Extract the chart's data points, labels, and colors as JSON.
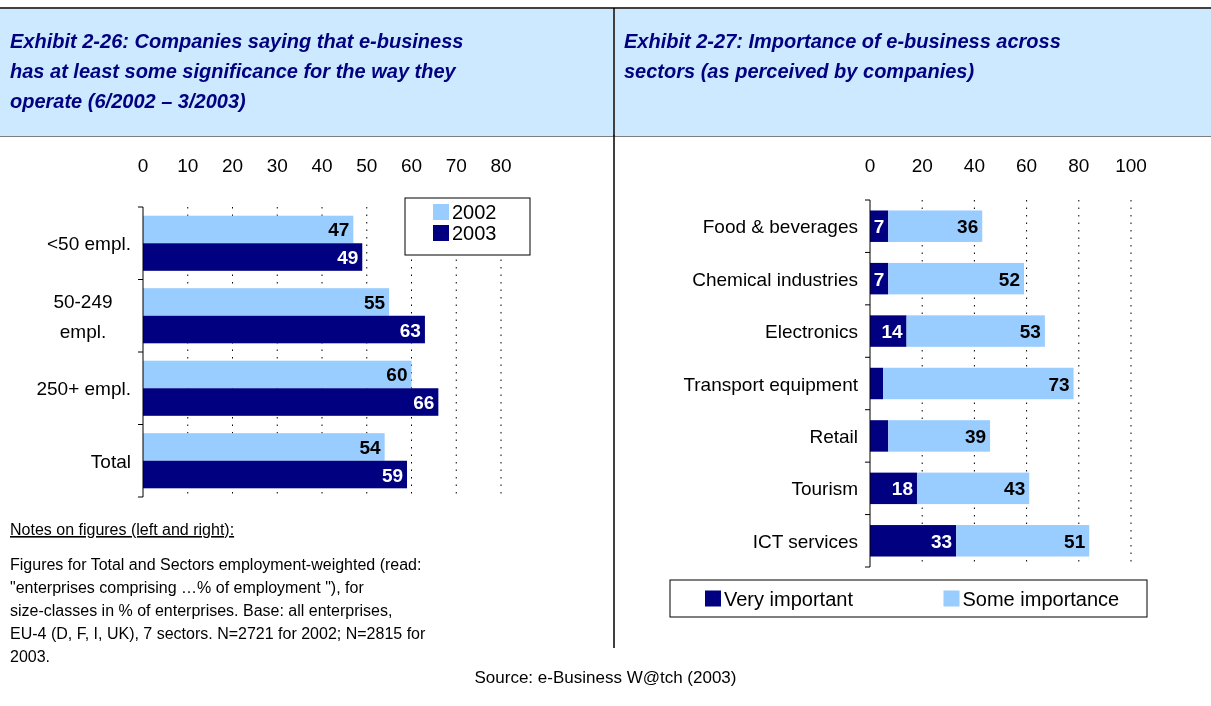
{
  "chart_data": [
    {
      "type": "bar",
      "orientation": "horizontal",
      "title": "Exhibit 2-26: Companies saying that e-business has at least some significance for the way they operate (6/2002 – 3/2003)",
      "categories": [
        "<50 empl.",
        "50-249 empl.",
        "250+ empl.",
        "Total"
      ],
      "series": [
        {
          "name": "2002",
          "color": "#99ccff",
          "values": [
            47,
            55,
            60,
            54
          ]
        },
        {
          "name": "2003",
          "color": "#000080",
          "values": [
            49,
            63,
            66,
            59
          ]
        }
      ],
      "xlim": [
        0,
        80
      ],
      "xticks": [
        0,
        10,
        20,
        30,
        40,
        50,
        60,
        70,
        80
      ],
      "grid": "x",
      "legend": "top right",
      "data_labels": true,
      "annotations": [
        "Notes on figures (left and right):",
        "Figures for Total and Sectors employment-weighted (read: \"enterprises comprising …% of employment \"), for size-classes in % of enterprises. Base: all enterprises, EU-4 (D, F, I, UK), 7 sectors. N=2721 for 2002; N=2815 for 2003.",
        "Source: e-Business W@tch (2003)"
      ]
    },
    {
      "type": "bar",
      "orientation": "horizontal",
      "stacked": true,
      "title": "Exhibit 2-27: Importance of e-business across sectors (as perceived by companies)",
      "categories": [
        "Food & beverages",
        "Chemical industries",
        "Electronics",
        "Transport equipment",
        "Retail",
        "Tourism",
        "ICT services"
      ],
      "series": [
        {
          "name": "Very important",
          "color": "#000080",
          "values": [
            7,
            7,
            14,
            5,
            7,
            18,
            33
          ],
          "value_labels": [
            "7",
            "7",
            "14",
            null,
            null,
            "18",
            "33"
          ]
        },
        {
          "name": "Some importance",
          "color": "#99ccff",
          "values": [
            36,
            52,
            53,
            73,
            39,
            43,
            51
          ],
          "value_labels": [
            "36",
            "52",
            "53",
            "73",
            "39",
            "43",
            "51"
          ]
        }
      ],
      "xlim": [
        0,
        100
      ],
      "xticks": [
        0,
        20,
        40,
        60,
        80,
        100
      ],
      "grid": "x",
      "legend": "bottom"
    }
  ]
}
